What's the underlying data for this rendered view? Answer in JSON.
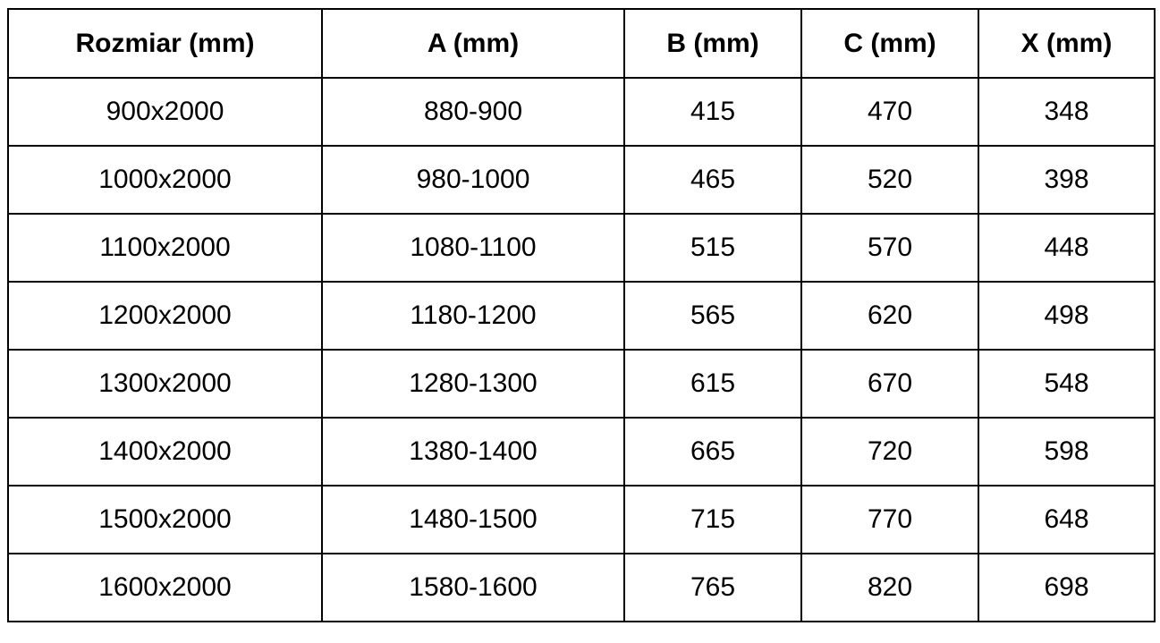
{
  "table": {
    "headers": [
      "Rozmiar (mm)",
      "A (mm)",
      "B (mm)",
      "C (mm)",
      "X (mm)"
    ],
    "rows": [
      [
        "900x2000",
        "880-900",
        "415",
        "470",
        "348"
      ],
      [
        "1000x2000",
        "980-1000",
        "465",
        "520",
        "398"
      ],
      [
        "1100x2000",
        "1080-1100",
        "515",
        "570",
        "448"
      ],
      [
        "1200x2000",
        "1180-1200",
        "565",
        "620",
        "498"
      ],
      [
        "1300x2000",
        "1280-1300",
        "615",
        "670",
        "548"
      ],
      [
        "1400x2000",
        "1380-1400",
        "665",
        "720",
        "598"
      ],
      [
        "1500x2000",
        "1480-1500",
        "715",
        "770",
        "648"
      ],
      [
        "1600x2000",
        "1580-1600",
        "765",
        "820",
        "698"
      ]
    ]
  }
}
